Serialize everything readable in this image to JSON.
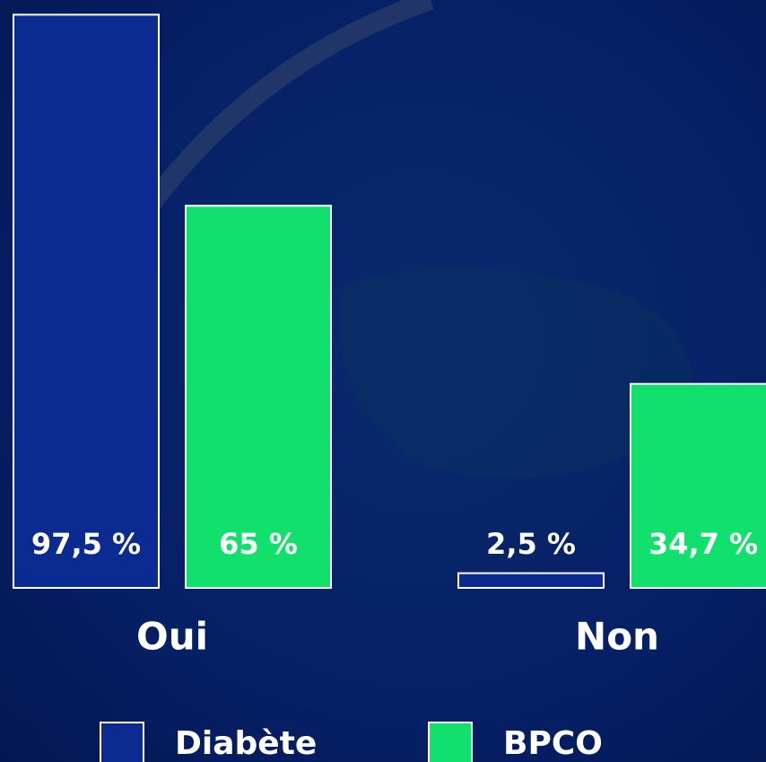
{
  "chart_data": {
    "type": "bar",
    "categories": [
      "Oui",
      "Non"
    ],
    "series": [
      {
        "name": "Diabète",
        "color": "#0b2b91",
        "values": [
          97.5,
          2.5
        ],
        "value_labels": [
          "97,5 %",
          "2,5 %"
        ]
      },
      {
        "name": "BPCO",
        "color": "#12e06c",
        "values": [
          65,
          34.7
        ],
        "value_labels": [
          "65 %",
          "34,7 %"
        ]
      }
    ],
    "ylim": [
      0,
      100
    ]
  }
}
